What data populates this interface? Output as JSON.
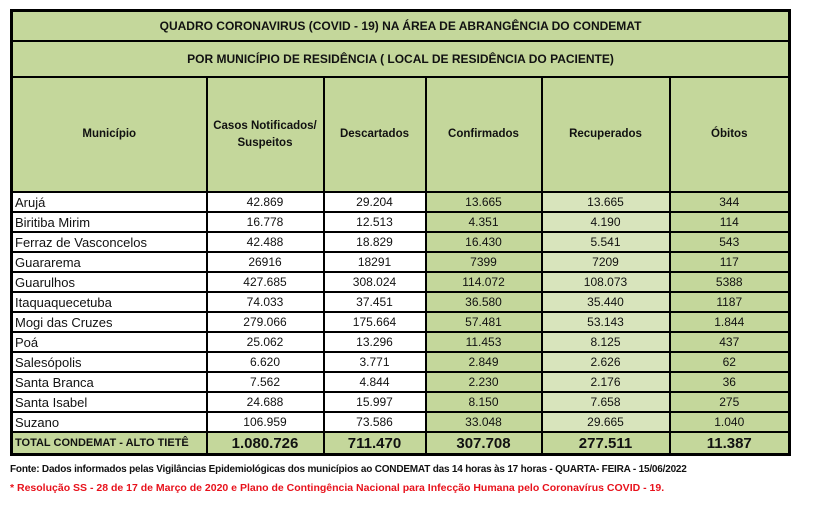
{
  "title": "QUADRO CORONAVIRUS (COVID - 19) NA ÁREA DE ABRANGÊNCIA DO CONDEMAT",
  "subtitle": "POR MUNICÍPIO DE RESIDÊNCIA ( LOCAL DE RESIDÊNCIA DO PACIENTE)",
  "headers": {
    "municipio": "Município",
    "casos_l1": "Casos Notificados/",
    "casos_l2": "Suspeitos",
    "descartados": "Descartados",
    "confirmados": "Confirmados",
    "recuperados": "Recuperados",
    "obitos": "Óbitos"
  },
  "rows": [
    {
      "municipio": "Arujá",
      "casos": "42.869",
      "descartados": "29.204",
      "confirmados": "13.665",
      "recuperados": "13.665",
      "obitos": "344"
    },
    {
      "municipio": "Biritiba Mirim",
      "casos": "16.778",
      "descartados": "12.513",
      "confirmados": "4.351",
      "recuperados": "4.190",
      "obitos": "114"
    },
    {
      "municipio": "Ferraz de Vasconcelos",
      "casos": "42.488",
      "descartados": "18.829",
      "confirmados": "16.430",
      "recuperados": "5.541",
      "obitos": "543"
    },
    {
      "municipio": "Guararema",
      "casos": "26916",
      "descartados": "18291",
      "confirmados": "7399",
      "recuperados": "7209",
      "obitos": "117"
    },
    {
      "municipio": "Guarulhos",
      "casos": "427.685",
      "descartados": "308.024",
      "confirmados": "114.072",
      "recuperados": "108.073",
      "obitos": "5388"
    },
    {
      "municipio": "Itaquaquecetuba",
      "casos": "74.033",
      "descartados": "37.451",
      "confirmados": "36.580",
      "recuperados": "35.440",
      "obitos": "1187"
    },
    {
      "municipio": "Mogi das Cruzes",
      "casos": "279.066",
      "descartados": "175.664",
      "confirmados": "57.481",
      "recuperados": "53.143",
      "obitos": "1.844"
    },
    {
      "municipio": "Poá",
      "casos": "25.062",
      "descartados": "13.296",
      "confirmados": "11.453",
      "recuperados": "8.125",
      "obitos": "437"
    },
    {
      "municipio": "Salesópolis",
      "casos": "6.620",
      "descartados": "3.771",
      "confirmados": "2.849",
      "recuperados": "2.626",
      "obitos": "62"
    },
    {
      "municipio": "Santa Branca",
      "casos": "7.562",
      "descartados": "4.844",
      "confirmados": "2.230",
      "recuperados": "2.176",
      "obitos": "36"
    },
    {
      "municipio": "Santa Isabel",
      "casos": "24.688",
      "descartados": "15.997",
      "confirmados": "8.150",
      "recuperados": "7.658",
      "obitos": "275"
    },
    {
      "municipio": "Suzano",
      "casos": "106.959",
      "descartados": "73.586",
      "confirmados": "33.048",
      "recuperados": "29.665",
      "obitos": "1.040"
    }
  ],
  "total": {
    "label": "TOTAL CONDEMAT - ALTO TIETÊ",
    "casos": "1.080.726",
    "descartados": "711.470",
    "confirmados": "307.708",
    "recuperados": "277.511",
    "obitos": "11.387"
  },
  "footer": {
    "source": "Fonte: Dados informados pelas Vigilâncias Epidemiológicas dos municípios ao CONDEMAT das 14 horas às 17 horas - QUARTA- FEIRA - 15/06/2022",
    "note": "* Resolução SS - 28 de 17 de Março de 2020 e Plano de Contingência Nacional para Infecção Humana pelo Coronavírus COVID - 19."
  },
  "colors": {
    "header_green": "#c4d79b",
    "light_green": "#d8e4bc",
    "note_red": "#e8121c"
  }
}
